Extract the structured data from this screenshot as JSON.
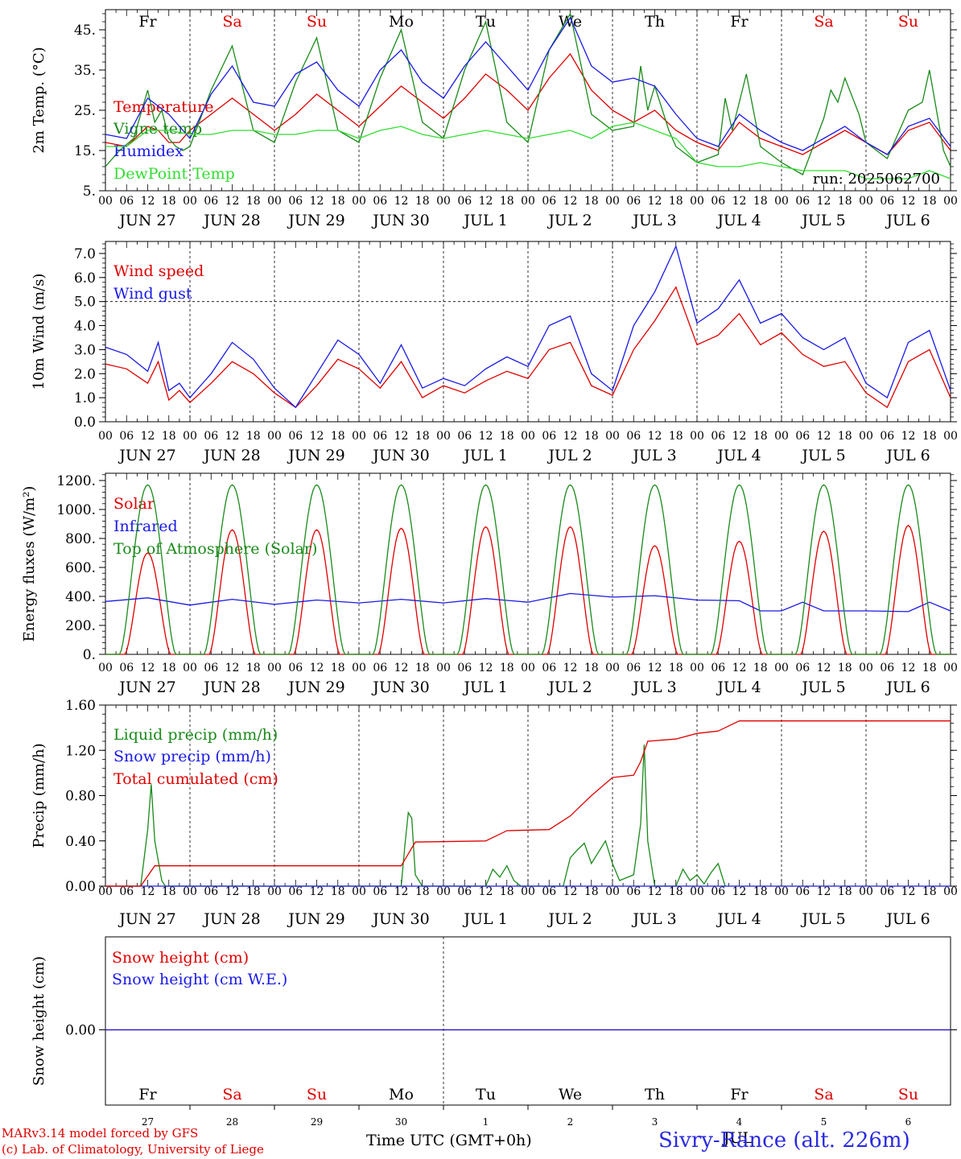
{
  "colors": {
    "red": "#e00000",
    "green": "#1a8a1a",
    "blue": "#1a1ae6",
    "lightgreen": "#33dd33",
    "black": "#000000"
  },
  "days": {
    "weekdays": [
      "Fr",
      "Sa",
      "Su",
      "Mo",
      "Tu",
      "We",
      "Th",
      "Fr",
      "Sa",
      "Su"
    ],
    "weekday_colors": [
      "black",
      "red",
      "red",
      "black",
      "black",
      "black",
      "black",
      "black",
      "red",
      "red"
    ],
    "dates": [
      "JUN 27",
      "JUN 28",
      "JUN 29",
      "JUN 30",
      "JUL  1",
      "JUL  2",
      "JUL  3",
      "JUL  4",
      "JUL  5",
      "JUL  6"
    ],
    "day_numbers": [
      "27",
      "28",
      "29",
      "30",
      "1",
      "2",
      "3",
      "4",
      "5",
      "6"
    ],
    "hour_ticks": [
      "00",
      "06",
      "12",
      "18"
    ],
    "final_tick": "00"
  },
  "footer": {
    "credit_line1": "MARv3.14 model forced by GFS",
    "credit_line2": "(c) Lab. of Climatology, University of Liege",
    "x_title": "Time UTC (GMT+0h)",
    "station": "Sivry-Rance (alt. 226m)",
    "overlap_label": "JUL"
  },
  "chart_data": [
    {
      "type": "line",
      "ylabel": "2m Temp. (°C)",
      "ylim": [
        5,
        50
      ],
      "yticks": [
        5,
        15,
        25,
        35,
        45
      ],
      "ytick_labels": [
        "5.",
        "15.",
        "25.",
        "35.",
        "45."
      ],
      "run_label": "run: 2025062700",
      "series": [
        {
          "name": "Temperature",
          "color": "red",
          "x_hours": [
            0,
            6,
            12,
            15,
            18,
            21,
            24,
            30,
            36,
            42,
            48,
            54,
            60,
            66,
            72,
            78,
            84,
            90,
            96,
            102,
            108,
            114,
            120,
            126,
            132,
            138,
            144,
            150,
            156,
            162,
            168,
            174,
            180,
            186,
            192,
            198,
            204,
            210,
            216,
            222,
            228,
            234,
            240
          ],
          "values": [
            17,
            16,
            21,
            20,
            17,
            17,
            20,
            24,
            28,
            24,
            20,
            24,
            29,
            25,
            21,
            26,
            31,
            27,
            23,
            28,
            34,
            30,
            25,
            33,
            39,
            30,
            25,
            22,
            25,
            20,
            17,
            15,
            22,
            18,
            16,
            14,
            17,
            20,
            17,
            14,
            20,
            22,
            15
          ]
        },
        {
          "name": "Vigne temp",
          "color": "green",
          "x_hours": [
            0,
            4,
            8,
            12,
            14,
            16,
            18,
            20,
            22,
            24,
            30,
            36,
            42,
            48,
            54,
            60,
            66,
            72,
            78,
            84,
            90,
            96,
            102,
            108,
            114,
            120,
            126,
            132,
            138,
            144,
            150,
            152,
            154,
            156,
            160,
            162,
            168,
            174,
            176,
            178,
            182,
            186,
            192,
            198,
            204,
            206,
            208,
            210,
            214,
            216,
            222,
            228,
            232,
            234,
            238,
            240
          ],
          "values": [
            11,
            15,
            18,
            30,
            22,
            25,
            18,
            16,
            15,
            16,
            30,
            41,
            20,
            17,
            32,
            43,
            20,
            17,
            33,
            45,
            22,
            18,
            35,
            47,
            22,
            17,
            40,
            49,
            24,
            20,
            21,
            36,
            25,
            31,
            20,
            16,
            12,
            14,
            28,
            20,
            34,
            16,
            12,
            9,
            23,
            30,
            27,
            33,
            24,
            17,
            13,
            25,
            27,
            35,
            15,
            11
          ]
        },
        {
          "name": "Humidex",
          "color": "blue",
          "x_hours": [
            0,
            6,
            12,
            18,
            24,
            30,
            36,
            42,
            48,
            54,
            60,
            66,
            72,
            78,
            84,
            90,
            96,
            102,
            108,
            114,
            120,
            126,
            132,
            138,
            144,
            150,
            156,
            162,
            168,
            174,
            180,
            186,
            192,
            198,
            204,
            210,
            216,
            222,
            228,
            234,
            240
          ],
          "values": [
            19,
            18,
            28,
            24,
            18,
            29,
            36,
            27,
            26,
            34,
            37,
            30,
            26,
            35,
            40,
            32,
            28,
            36,
            42,
            36,
            30,
            40,
            48,
            36,
            32,
            33,
            31,
            24,
            18,
            16,
            24,
            20,
            17,
            15,
            18,
            21,
            17,
            14,
            21,
            23,
            16
          ]
        },
        {
          "name": "DewPoint Temp",
          "color": "lightgreen",
          "x_hours": [
            0,
            6,
            12,
            18,
            24,
            30,
            36,
            42,
            48,
            54,
            60,
            66,
            72,
            78,
            84,
            90,
            96,
            102,
            108,
            114,
            120,
            126,
            132,
            138,
            144,
            150,
            156,
            162,
            168,
            174,
            180,
            186,
            192,
            198,
            204,
            210,
            216,
            222,
            228,
            234,
            240
          ],
          "values": [
            16,
            16,
            20,
            20,
            19,
            19,
            20,
            20,
            19,
            19,
            20,
            20,
            18,
            20,
            21,
            19,
            18,
            19,
            20,
            19,
            18,
            19,
            20,
            18,
            21,
            22,
            20,
            18,
            12,
            11,
            11,
            12,
            11,
            10,
            10,
            10,
            8,
            8,
            8,
            10,
            8
          ]
        }
      ]
    },
    {
      "type": "line",
      "ylabel": "10m Wind (m/s)",
      "ylim": [
        0,
        7.5
      ],
      "yticks": [
        0,
        1,
        2,
        3,
        4,
        5,
        6,
        7
      ],
      "ytick_labels": [
        "0.0",
        "1.0",
        "2.0",
        "3.0",
        "4.0",
        "5.0",
        "6.0",
        "7.0"
      ],
      "reference_line": 5.0,
      "series": [
        {
          "name": "Wind speed",
          "color": "red",
          "x_hours": [
            0,
            6,
            12,
            15,
            18,
            21,
            24,
            30,
            36,
            42,
            48,
            54,
            60,
            66,
            72,
            78,
            84,
            90,
            96,
            102,
            108,
            114,
            120,
            126,
            132,
            138,
            144,
            150,
            156,
            162,
            168,
            174,
            180,
            186,
            192,
            198,
            204,
            210,
            216,
            222,
            228,
            234,
            240
          ],
          "values": [
            2.4,
            2.2,
            1.6,
            2.5,
            0.9,
            1.3,
            0.8,
            1.6,
            2.5,
            2.0,
            1.2,
            0.6,
            1.5,
            2.6,
            2.2,
            1.4,
            2.5,
            1.0,
            1.5,
            1.2,
            1.7,
            2.1,
            1.8,
            3.0,
            3.3,
            1.5,
            1.1,
            3.0,
            4.2,
            5.6,
            3.2,
            3.6,
            4.5,
            3.2,
            3.7,
            2.8,
            2.3,
            2.5,
            1.2,
            0.6,
            2.5,
            3.0,
            1.0
          ]
        },
        {
          "name": "Wind gust",
          "color": "blue",
          "x_hours": [
            0,
            6,
            12,
            15,
            18,
            21,
            24,
            30,
            36,
            42,
            48,
            54,
            60,
            66,
            72,
            78,
            84,
            90,
            96,
            102,
            108,
            114,
            120,
            126,
            132,
            138,
            144,
            150,
            156,
            162,
            168,
            174,
            180,
            186,
            192,
            198,
            204,
            210,
            216,
            222,
            228,
            234,
            240
          ],
          "values": [
            3.1,
            2.8,
            2.1,
            3.3,
            1.3,
            1.6,
            1.0,
            2.0,
            3.3,
            2.6,
            1.4,
            0.6,
            2.0,
            3.4,
            2.8,
            1.6,
            3.2,
            1.4,
            1.8,
            1.5,
            2.2,
            2.7,
            2.3,
            4.0,
            4.4,
            2.0,
            1.3,
            4.0,
            5.4,
            7.3,
            4.1,
            4.7,
            5.9,
            4.1,
            4.5,
            3.5,
            3.0,
            3.5,
            1.6,
            1.0,
            3.3,
            3.8,
            1.3
          ]
        }
      ]
    },
    {
      "type": "line",
      "ylabel": "Energy fluxes (W/m²)",
      "ylim": [
        0,
        1250
      ],
      "yticks": [
        0,
        200,
        400,
        600,
        800,
        1000,
        1200
      ],
      "ytick_labels": [
        "0.",
        "200.",
        "400.",
        "600.",
        "800.",
        "1000.",
        "1200."
      ],
      "series": [
        {
          "name": "Solar",
          "color": "red",
          "daily_peaks": [
            700,
            860,
            860,
            870,
            880,
            880,
            750,
            780,
            850,
            890
          ]
        },
        {
          "name": "Infrared",
          "color": "blue",
          "x_hours": [
            0,
            12,
            24,
            36,
            48,
            60,
            72,
            84,
            96,
            108,
            120,
            132,
            144,
            156,
            168,
            180,
            186,
            192,
            198,
            204,
            216,
            228,
            234,
            240
          ],
          "values": [
            365,
            390,
            340,
            380,
            345,
            375,
            355,
            380,
            355,
            385,
            360,
            420,
            395,
            405,
            375,
            370,
            300,
            300,
            360,
            300,
            300,
            295,
            360,
            300
          ]
        },
        {
          "name": "Top of Atmosphere (Solar)",
          "color": "green",
          "daily_peak": 1170
        }
      ]
    },
    {
      "type": "line",
      "ylabel": "Precip (mm/h)",
      "ylim": [
        0,
        1.6
      ],
      "yticks": [
        0,
        0.4,
        0.8,
        1.2,
        1.6
      ],
      "ytick_labels": [
        "0.00",
        "0.40",
        "0.80",
        "1.20",
        "1.60"
      ],
      "series": [
        {
          "name": "Liquid precip (mm/h)",
          "color": "green",
          "x_hours": [
            0,
            10,
            12,
            13,
            14,
            16,
            17,
            84,
            85,
            86,
            87,
            88,
            90,
            108,
            110,
            112,
            114,
            116,
            118,
            130,
            132,
            134,
            136,
            138,
            140,
            142,
            144,
            146,
            150,
            152,
            153,
            154,
            156,
            162,
            164,
            166,
            168,
            170,
            172,
            174,
            176
          ],
          "values": [
            0,
            0,
            0.5,
            0.9,
            0.4,
            0.05,
            0,
            0,
            0.35,
            0.65,
            0.6,
            0.1,
            0,
            0,
            0.15,
            0.08,
            0.18,
            0.05,
            0,
            0,
            0.25,
            0.32,
            0.38,
            0.2,
            0.3,
            0.4,
            0.2,
            0.05,
            0.1,
            0.55,
            1.25,
            0.4,
            0,
            0,
            0.15,
            0.05,
            0.1,
            0.02,
            0.12,
            0.2,
            0
          ]
        },
        {
          "name": "Snow precip (mm/h)",
          "color": "blue",
          "values": [
            0
          ]
        },
        {
          "name": "Total cumulated (cm)",
          "color": "red",
          "x_hours": [
            0,
            10,
            14,
            84,
            88,
            108,
            114,
            126,
            132,
            138,
            144,
            150,
            152,
            154,
            162,
            168,
            174,
            180,
            240
          ],
          "values": [
            0,
            0,
            0.18,
            0.18,
            0.39,
            0.4,
            0.49,
            0.5,
            0.62,
            0.8,
            0.96,
            0.98,
            1.1,
            1.28,
            1.3,
            1.35,
            1.37,
            1.46,
            1.46
          ]
        }
      ]
    },
    {
      "type": "line",
      "ylabel": "Snow height (cm)",
      "yticks": [
        0
      ],
      "ytick_labels": [
        "0.00"
      ],
      "series": [
        {
          "name": "Snow height (cm)",
          "color": "red",
          "values": [
            0
          ]
        },
        {
          "name": "Snow height (cm W.E.)",
          "color": "blue",
          "values": [
            0
          ]
        }
      ]
    }
  ]
}
